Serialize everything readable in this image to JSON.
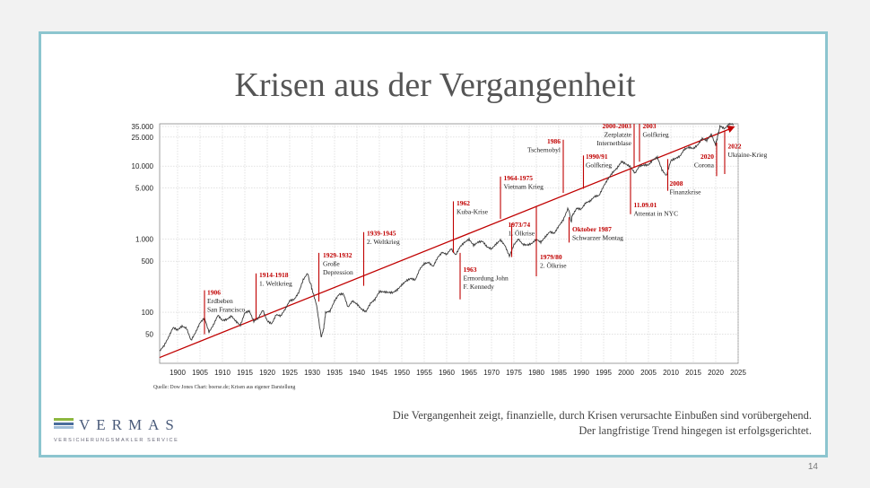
{
  "slide": {
    "title": "Krisen aus der Vergangenheit",
    "caption_line1": "Die Vergangenheit zeigt, finanzielle, durch Krisen verursachte Einbußen sind vorübergehend.",
    "caption_line2": "Der langfristige Trend hingegen ist erfolgsgerichtet.",
    "page_number": "14",
    "logo_word": "VERMAS",
    "logo_sub": "VERSICHERUNGSMAKLER SERVICE",
    "colors": {
      "border": "#8cc5cf",
      "accent": "#c00000",
      "logo_green": "#8db83f",
      "logo_blue": "#4a6d9c"
    }
  },
  "chart_data": {
    "type": "line",
    "scale": "log",
    "source": "Quelle: Dow Jones Chart: boerse.de; Krisen aus eigener Darstellung",
    "xlim": [
      1896,
      2025
    ],
    "ylim": [
      20,
      38000
    ],
    "x_ticks": [
      "1900",
      "1905",
      "1910",
      "1915",
      "1920",
      "1925",
      "1930",
      "1935",
      "1940",
      "1945",
      "1950",
      "1955",
      "1960",
      "1965",
      "1970",
      "1975",
      "1980",
      "1985",
      "1990",
      "1995",
      "2000",
      "2005",
      "2010",
      "2015",
      "2020",
      "2025"
    ],
    "y_ticks": [
      {
        "value": 35000,
        "label": "35.000"
      },
      {
        "value": 25000,
        "label": "25.000"
      },
      {
        "value": 10000,
        "label": "10.000"
      },
      {
        "value": 5000,
        "label": "5.000"
      },
      {
        "value": 1000,
        "label": "1.000"
      },
      {
        "value": 500,
        "label": "500"
      },
      {
        "value": 100,
        "label": "100"
      },
      {
        "value": 50,
        "label": "50"
      }
    ],
    "series": [
      {
        "name": "Dow Jones",
        "points": [
          [
            1896,
            30
          ],
          [
            1897,
            35
          ],
          [
            1898,
            45
          ],
          [
            1899,
            60
          ],
          [
            1900,
            55
          ],
          [
            1901,
            62
          ],
          [
            1902,
            58
          ],
          [
            1903,
            40
          ],
          [
            1904,
            52
          ],
          [
            1905,
            72
          ],
          [
            1906,
            85
          ],
          [
            1907,
            55
          ],
          [
            1908,
            70
          ],
          [
            1909,
            95
          ],
          [
            1910,
            80
          ],
          [
            1911,
            82
          ],
          [
            1912,
            90
          ],
          [
            1913,
            75
          ],
          [
            1914,
            65
          ],
          [
            1915,
            95
          ],
          [
            1916,
            100
          ],
          [
            1917,
            72
          ],
          [
            1918,
            80
          ],
          [
            1919,
            105
          ],
          [
            1920,
            75
          ],
          [
            1921,
            70
          ],
          [
            1922,
            95
          ],
          [
            1923,
            92
          ],
          [
            1924,
            115
          ],
          [
            1925,
            150
          ],
          [
            1926,
            155
          ],
          [
            1927,
            190
          ],
          [
            1928,
            280
          ],
          [
            1929,
            340
          ],
          [
            1929.8,
            230
          ],
          [
            1930,
            200
          ],
          [
            1931,
            120
          ],
          [
            1932,
            45
          ],
          [
            1932.6,
            60
          ],
          [
            1933,
            95
          ],
          [
            1934,
            100
          ],
          [
            1935,
            140
          ],
          [
            1936,
            175
          ],
          [
            1937,
            180
          ],
          [
            1938,
            120
          ],
          [
            1939,
            148
          ],
          [
            1940,
            135
          ],
          [
            1941,
            115
          ],
          [
            1942,
            105
          ],
          [
            1943,
            135
          ],
          [
            1944,
            150
          ],
          [
            1945,
            190
          ],
          [
            1946,
            185
          ],
          [
            1947,
            180
          ],
          [
            1948,
            178
          ],
          [
            1949,
            195
          ],
          [
            1950,
            230
          ],
          [
            1951,
            265
          ],
          [
            1952,
            290
          ],
          [
            1953,
            280
          ],
          [
            1954,
            400
          ],
          [
            1955,
            480
          ],
          [
            1956,
            500
          ],
          [
            1957,
            440
          ],
          [
            1958,
            580
          ],
          [
            1959,
            670
          ],
          [
            1960,
            620
          ],
          [
            1961,
            730
          ],
          [
            1962,
            590
          ],
          [
            1963,
            760
          ],
          [
            1964,
            870
          ],
          [
            1965,
            960
          ],
          [
            1966,
            800
          ],
          [
            1967,
            900
          ],
          [
            1968,
            940
          ],
          [
            1969,
            800
          ],
          [
            1970,
            760
          ],
          [
            1971,
            890
          ],
          [
            1972,
            1020
          ],
          [
            1973,
            850
          ],
          [
            1974,
            600
          ],
          [
            1975,
            850
          ],
          [
            1976,
            1000
          ],
          [
            1977,
            830
          ],
          [
            1978,
            805
          ],
          [
            1979,
            840
          ],
          [
            1980,
            960
          ],
          [
            1981,
            875
          ],
          [
            1982,
            1050
          ],
          [
            1983,
            1250
          ],
          [
            1984,
            1210
          ],
          [
            1985,
            1550
          ],
          [
            1986,
            1900
          ],
          [
            1987,
            2700
          ],
          [
            1987.8,
            1750
          ],
          [
            1988,
            2170
          ],
          [
            1989,
            2750
          ],
          [
            1990,
            2630
          ],
          [
            1991,
            3170
          ],
          [
            1992,
            3300
          ],
          [
            1993,
            3750
          ],
          [
            1994,
            3830
          ],
          [
            1995,
            5100
          ],
          [
            1996,
            6450
          ],
          [
            1997,
            7900
          ],
          [
            1998,
            9200
          ],
          [
            1999,
            11500
          ],
          [
            2000,
            10800
          ],
          [
            2001,
            10000
          ],
          [
            2002,
            8300
          ],
          [
            2003,
            10450
          ],
          [
            2004,
            10780
          ],
          [
            2005,
            10700
          ],
          [
            2006,
            12450
          ],
          [
            2007,
            13300
          ],
          [
            2008,
            8800
          ],
          [
            2009,
            7200
          ],
          [
            2010,
            11500
          ],
          [
            2011,
            12200
          ],
          [
            2012,
            13100
          ],
          [
            2013,
            16500
          ],
          [
            2014,
            17800
          ],
          [
            2015,
            17400
          ],
          [
            2016,
            19800
          ],
          [
            2017,
            24700
          ],
          [
            2018,
            23300
          ],
          [
            2019,
            28500
          ],
          [
            2020,
            20000
          ],
          [
            2020.5,
            26500
          ],
          [
            2021,
            36300
          ],
          [
            2022,
            33100
          ],
          [
            2023,
            37700
          ],
          [
            2024,
            37000
          ]
        ]
      }
    ],
    "trend": {
      "from": [
        1896,
        24
      ],
      "to": [
        2023.5,
        33000
      ]
    },
    "annotations": [
      {
        "year_label": "1906",
        "text": [
          "Erdbeben",
          "San Francisco"
        ],
        "x": 1906,
        "low": 50,
        "high": 200,
        "tx": 1906.2,
        "ty": 175
      },
      {
        "year_label": "1914-1918",
        "text": [
          "1. Weltkrieg"
        ],
        "x": 1917.5,
        "low": 80,
        "high": 340,
        "tx": 1917.8,
        "ty": 300
      },
      {
        "year_label": "1929-1932",
        "text": [
          "Große",
          "Depression"
        ],
        "x": 1931.5,
        "low": 140,
        "high": 650,
        "tx": 1932,
        "ty": 560
      },
      {
        "year_label": "1939-1945",
        "text": [
          "2. Weltkrieg"
        ],
        "x": 1941.5,
        "low": 230,
        "high": 1250,
        "tx": 1941.8,
        "ty": 1120
      },
      {
        "year_label": "1962",
        "text": [
          "Kuba-Krise"
        ],
        "x": 1961.5,
        "low": 650,
        "high": 3300,
        "tx": 1961.8,
        "ty": 2900
      },
      {
        "year_label": "1963",
        "text": [
          "Ermordung John",
          "F. Kennedy"
        ],
        "x": 1963,
        "low": 150,
        "high": 650,
        "tx": 1963.3,
        "ty": 360,
        "below": true
      },
      {
        "year_label": "1964-1975",
        "text": [
          "Vietnam Krieg"
        ],
        "x": 1972,
        "low": 1900,
        "high": 7200,
        "tx": 1972.3,
        "ty": 6400
      },
      {
        "year_label": "1973/74",
        "text": [
          "1. Ölkrise"
        ],
        "x": 1974.5,
        "low": 570,
        "high": 1650,
        "tx": 1973.3,
        "ty": 1480
      },
      {
        "year_label": "1979/80",
        "text": [
          "2. Ölkrise"
        ],
        "x": 1980,
        "low": 310,
        "high": 2800,
        "tx": 1980.4,
        "ty": 530,
        "below": true
      },
      {
        "year_label": "1986",
        "text": [
          "Tschernobyl"
        ],
        "x": 1986,
        "low": 4300,
        "high": 23000,
        "tx": 1979.5,
        "ty": 20500,
        "left": true
      },
      {
        "year_label": "Oktober 1987",
        "text": [
          "Schwarzer Montag"
        ],
        "x": 1987.3,
        "low": 900,
        "high": 2000,
        "tx": 1987.6,
        "ty": 1270,
        "below": true
      },
      {
        "year_label": "1990/91",
        "text": [
          "Golfkrieg"
        ],
        "x": 1990.5,
        "low": 4900,
        "high": 14000,
        "tx": 1990.6,
        "ty": 12700
      },
      {
        "year_label": "2000-2003",
        "text": [
          "Zerplatzte",
          "Internetblase"
        ],
        "x": 2001.8,
        "low": 9500,
        "high": 38000,
        "tx": 1993.5,
        "ty": 33000,
        "left": true
      },
      {
        "year_label": "2003",
        "text": [
          "Golfkrieg"
        ],
        "x": 2003,
        "low": 11500,
        "high": 38000,
        "tx": 2003.3,
        "ty": 33000
      },
      {
        "year_label": "11.09.01",
        "text": [
          "Attentat in NYC"
        ],
        "x": 2001,
        "low": 2200,
        "high": 9500,
        "tx": 2001.3,
        "ty": 2750,
        "below": true
      },
      {
        "year_label": "2008",
        "text": [
          "Finanzkrise"
        ],
        "x": 2009.3,
        "low": 4600,
        "high": 12500,
        "tx": 2009.3,
        "ty": 5400,
        "below": true
      },
      {
        "year_label": "2020",
        "text": [
          "Corona"
        ],
        "x": 2020.2,
        "low": 7300,
        "high": 21000,
        "tx": 2014.5,
        "ty": 12600,
        "left": true
      },
      {
        "year_label": "2022",
        "text": [
          "Ukraine-Krieg"
        ],
        "x": 2022,
        "low": 7800,
        "high": 30000,
        "tx": 2022.3,
        "ty": 17500
      }
    ]
  }
}
